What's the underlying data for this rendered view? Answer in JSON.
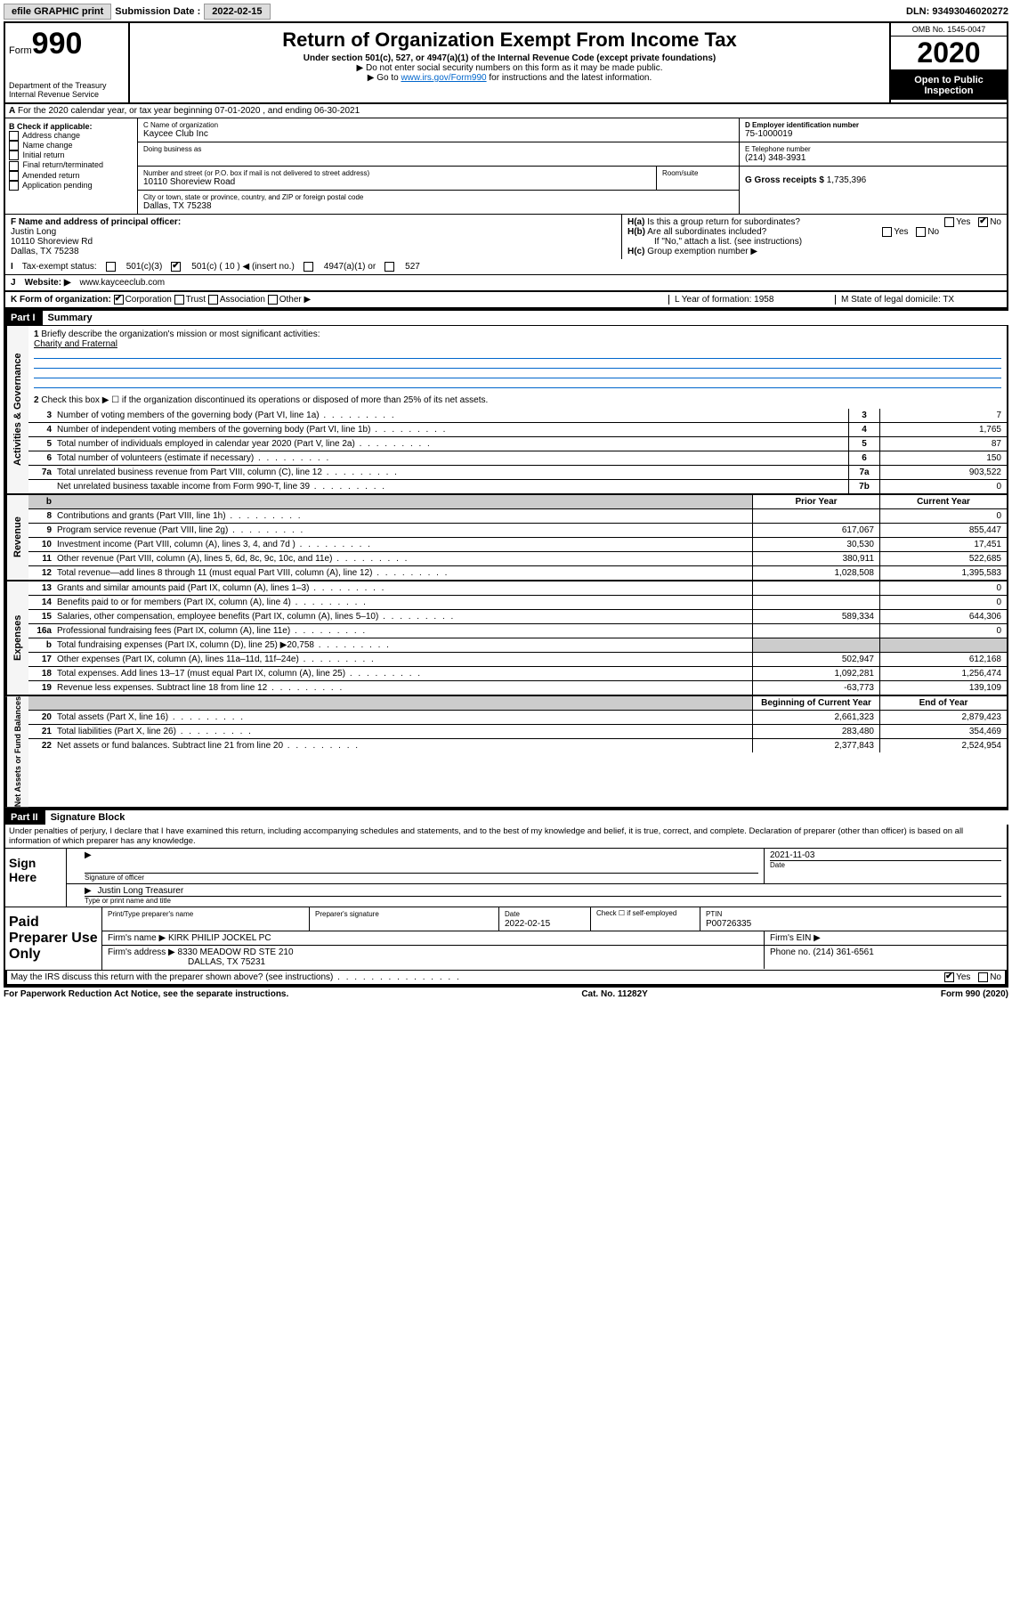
{
  "topbar": {
    "efile": "efile GRAPHIC print",
    "submission_label": "Submission Date :",
    "submission_date": "2022-02-15",
    "dln": "DLN: 93493046020272"
  },
  "header": {
    "form_label": "Form",
    "form_num": "990",
    "dept": "Department of the Treasury Internal Revenue Service",
    "title": "Return of Organization Exempt From Income Tax",
    "subtitle": "Under section 501(c), 527, or 4947(a)(1) of the Internal Revenue Code (except private foundations)",
    "note1": "▶ Do not enter social security numbers on this form as it may be made public.",
    "note2_pre": "▶ Go to ",
    "note2_link": "www.irs.gov/Form990",
    "note2_post": " for instructions and the latest information.",
    "omb": "OMB No. 1545-0047",
    "year": "2020",
    "open": "Open to Public Inspection"
  },
  "row_a": "For the 2020 calendar year, or tax year beginning 07-01-2020   , and ending 06-30-2021",
  "box_b": {
    "title": "B Check if applicable:",
    "opts": [
      "Address change",
      "Name change",
      "Initial return",
      "Final return/terminated",
      "Amended return",
      "Application pending"
    ]
  },
  "box_c": {
    "name_label": "C Name of organization",
    "name": "Kaycee Club Inc",
    "dba_label": "Doing business as",
    "street_label": "Number and street (or P.O. box if mail is not delivered to street address)",
    "room_label": "Room/suite",
    "street": "10110 Shoreview Road",
    "city_label": "City or town, state or province, country, and ZIP or foreign postal code",
    "city": "Dallas, TX  75238"
  },
  "box_d": {
    "label": "D Employer identification number",
    "value": "75-1000019"
  },
  "box_e": {
    "label": "E Telephone number",
    "value": "(214) 348-3931"
  },
  "box_g": {
    "label": "G Gross receipts $",
    "value": "1,735,396"
  },
  "box_f": {
    "label": "F Name and address of principal officer:",
    "name": "Justin Long",
    "addr1": "10110 Shoreview Rd",
    "addr2": "Dallas, TX  75238"
  },
  "box_h": {
    "a": "Is this a group return for subordinates?",
    "b": "Are all subordinates included?",
    "b_note": "If \"No,\" attach a list. (see instructions)",
    "c": "Group exemption number ▶"
  },
  "row_i": {
    "label": "Tax-exempt status:",
    "o1": "501(c)(3)",
    "o2": "501(c) ( 10 ) ◀ (insert no.)",
    "o3": "4947(a)(1) or",
    "o4": "527"
  },
  "row_j": {
    "label": "Website: ▶",
    "value": "www.kayceeclub.com"
  },
  "row_k": {
    "label": "K Form of organization:",
    "o1": "Corporation",
    "o2": "Trust",
    "o3": "Association",
    "o4": "Other ▶",
    "l": "L Year of formation: 1958",
    "m": "M State of legal domicile: TX"
  },
  "part1": {
    "header": "Part I",
    "title": "Summary"
  },
  "summary": {
    "q1": "Briefly describe the organization's mission or most significant activities:",
    "mission": "Charity and Fraternal",
    "q2": "Check this box ▶ ☐  if the organization discontinued its operations or disposed of more than 25% of its net assets."
  },
  "gov_rows": [
    {
      "n": "3",
      "d": "Number of voting members of the governing body (Part VI, line 1a)",
      "c": "3",
      "v": "7"
    },
    {
      "n": "4",
      "d": "Number of independent voting members of the governing body (Part VI, line 1b)",
      "c": "4",
      "v": "1,765"
    },
    {
      "n": "5",
      "d": "Total number of individuals employed in calendar year 2020 (Part V, line 2a)",
      "c": "5",
      "v": "87"
    },
    {
      "n": "6",
      "d": "Total number of volunteers (estimate if necessary)",
      "c": "6",
      "v": "150"
    },
    {
      "n": "7a",
      "d": "Total unrelated business revenue from Part VIII, column (C), line 12",
      "c": "7a",
      "v": "903,522"
    },
    {
      "n": "",
      "d": "Net unrelated business taxable income from Form 990-T, line 39",
      "c": "7b",
      "v": "0"
    }
  ],
  "col_headers": {
    "prior": "Prior Year",
    "current": "Current Year",
    "begin": "Beginning of Current Year",
    "end": "End of Year"
  },
  "revenue": [
    {
      "n": "8",
      "d": "Contributions and grants (Part VIII, line 1h)",
      "p": "",
      "c": "0"
    },
    {
      "n": "9",
      "d": "Program service revenue (Part VIII, line 2g)",
      "p": "617,067",
      "c": "855,447"
    },
    {
      "n": "10",
      "d": "Investment income (Part VIII, column (A), lines 3, 4, and 7d )",
      "p": "30,530",
      "c": "17,451"
    },
    {
      "n": "11",
      "d": "Other revenue (Part VIII, column (A), lines 5, 6d, 8c, 9c, 10c, and 11e)",
      "p": "380,911",
      "c": "522,685"
    },
    {
      "n": "12",
      "d": "Total revenue—add lines 8 through 11 (must equal Part VIII, column (A), line 12)",
      "p": "1,028,508",
      "c": "1,395,583"
    }
  ],
  "expenses": [
    {
      "n": "13",
      "d": "Grants and similar amounts paid (Part IX, column (A), lines 1–3)",
      "p": "",
      "c": "0"
    },
    {
      "n": "14",
      "d": "Benefits paid to or for members (Part IX, column (A), line 4)",
      "p": "",
      "c": "0"
    },
    {
      "n": "15",
      "d": "Salaries, other compensation, employee benefits (Part IX, column (A), lines 5–10)",
      "p": "589,334",
      "c": "644,306"
    },
    {
      "n": "16a",
      "d": "Professional fundraising fees (Part IX, column (A), line 11e)",
      "p": "",
      "c": "0"
    },
    {
      "n": "b",
      "d": "Total fundraising expenses (Part IX, column (D), line 25) ▶20,758",
      "p": "gray",
      "c": "gray"
    },
    {
      "n": "17",
      "d": "Other expenses (Part IX, column (A), lines 11a–11d, 11f–24e)",
      "p": "502,947",
      "c": "612,168"
    },
    {
      "n": "18",
      "d": "Total expenses. Add lines 13–17 (must equal Part IX, column (A), line 25)",
      "p": "1,092,281",
      "c": "1,256,474"
    },
    {
      "n": "19",
      "d": "Revenue less expenses. Subtract line 18 from line 12",
      "p": "-63,773",
      "c": "139,109"
    }
  ],
  "netassets": [
    {
      "n": "20",
      "d": "Total assets (Part X, line 16)",
      "p": "2,661,323",
      "c": "2,879,423"
    },
    {
      "n": "21",
      "d": "Total liabilities (Part X, line 26)",
      "p": "283,480",
      "c": "354,469"
    },
    {
      "n": "22",
      "d": "Net assets or fund balances. Subtract line 21 from line 20",
      "p": "2,377,843",
      "c": "2,524,954"
    }
  ],
  "sides": {
    "gov": "Activities & Governance",
    "rev": "Revenue",
    "exp": "Expenses",
    "net": "Net Assets or Fund Balances"
  },
  "part2": {
    "header": "Part II",
    "title": "Signature Block"
  },
  "sig": {
    "intro": "Under penalties of perjury, I declare that I have examined this return, including accompanying schedules and statements, and to the best of my knowledge and belief, it is true, correct, and complete. Declaration of preparer (other than officer) is based on all information of which preparer has any knowledge.",
    "sign_here": "Sign Here",
    "sig_label": "Signature of officer",
    "date_label": "Date",
    "date": "2021-11-03",
    "name": "Justin Long Treasurer",
    "name_label": "Type or print name and title"
  },
  "prep": {
    "title": "Paid Preparer Use Only",
    "h1": "Print/Type preparer's name",
    "h2": "Preparer's signature",
    "h3": "Date",
    "h3v": "2022-02-15",
    "h4": "Check ☐ if self-employed",
    "h5": "PTIN",
    "h5v": "P00726335",
    "firm_label": "Firm's name    ▶",
    "firm": "KIRK PHILIP JOCKEL PC",
    "ein_label": "Firm's EIN ▶",
    "addr_label": "Firm's address ▶",
    "addr1": "8330 MEADOW RD STE 210",
    "addr2": "DALLAS, TX  75231",
    "phone_label": "Phone no.",
    "phone": "(214) 361-6561"
  },
  "footer": {
    "q": "May the IRS discuss this return with the preparer shown above? (see instructions)",
    "paperwork": "For Paperwork Reduction Act Notice, see the separate instructions.",
    "cat": "Cat. No. 11282Y",
    "form": "Form 990 (2020)"
  }
}
